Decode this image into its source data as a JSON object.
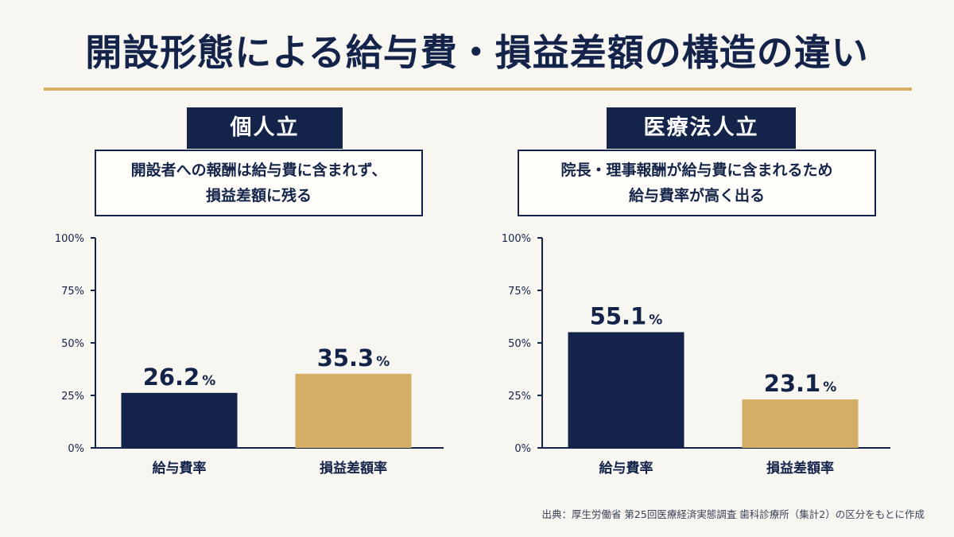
{
  "title": "開設形態による給与費・損益差額の構造の違い",
  "source": "出典：厚生労働省 第25回医療経済実態調査 歯科診療所（集計2）の区分をもとに作成",
  "colors": {
    "navy": "#13234a",
    "gold": "#d4ae61",
    "gold_bar": "#d3ae64",
    "rule": "#d4ae61"
  },
  "panels": [
    {
      "label": "個人立",
      "desc_line1": "開設者への報酬は給与費に含まれず、",
      "desc_line2": "損益差額に残る"
    },
    {
      "label": "医療法人立",
      "desc_line1": "院長・理事報酬が給与費に含まれるため",
      "desc_line2": "給与費率が高く出る"
    }
  ],
  "chart_data": [
    {
      "type": "bar",
      "categories": [
        "給与費率",
        "損益差額率"
      ],
      "values": [
        26.2,
        35.3
      ],
      "value_labels": [
        "26.2",
        "35.3"
      ],
      "unit": "%",
      "bar_colors": [
        "#13234a",
        "#d3ae64"
      ],
      "ylim": [
        0,
        100
      ],
      "yticks": [
        0,
        25,
        50,
        75,
        100
      ],
      "ytick_labels": [
        "0%",
        "25%",
        "50%",
        "75%",
        "100%"
      ],
      "grid": false
    },
    {
      "type": "bar",
      "categories": [
        "給与費率",
        "損益差額率"
      ],
      "values": [
        55.1,
        23.1
      ],
      "value_labels": [
        "55.1",
        "23.1"
      ],
      "unit": "%",
      "bar_colors": [
        "#13234a",
        "#d3ae64"
      ],
      "ylim": [
        0,
        100
      ],
      "yticks": [
        0,
        25,
        50,
        75,
        100
      ],
      "ytick_labels": [
        "0%",
        "25%",
        "50%",
        "75%",
        "100%"
      ],
      "grid": false
    }
  ]
}
